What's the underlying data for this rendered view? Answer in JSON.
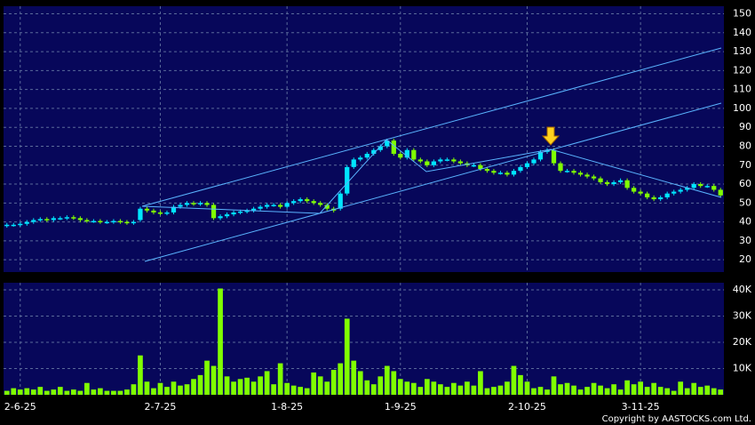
{
  "chart_data": {
    "type": "candlestick",
    "categories": [
      null,
      null,
      "2-6-25",
      null,
      null,
      null,
      null,
      null,
      null,
      null,
      null,
      null,
      null,
      null,
      null,
      null,
      null,
      null,
      null,
      null,
      null,
      null,
      null,
      "2-7-25",
      null,
      null,
      null,
      null,
      null,
      null,
      null,
      null,
      null,
      null,
      null,
      null,
      null,
      null,
      null,
      null,
      null,
      null,
      "1-8-25",
      null,
      null,
      null,
      null,
      null,
      null,
      null,
      null,
      null,
      null,
      null,
      null,
      null,
      null,
      null,
      null,
      "1-9-25",
      null,
      null,
      null,
      null,
      null,
      null,
      null,
      null,
      null,
      null,
      null,
      null,
      null,
      null,
      null,
      null,
      null,
      null,
      "2-10-25",
      null,
      null,
      null,
      null,
      null,
      null,
      null,
      null,
      null,
      null,
      null,
      null,
      null,
      null,
      null,
      null,
      "3-11-25",
      null,
      null,
      null,
      null,
      null,
      null,
      null,
      null,
      null,
      null,
      null,
      null
    ],
    "open": [
      38,
      38.5,
      38.5,
      39,
      40,
      41,
      41.5,
      41,
      42,
      42,
      42.5,
      42,
      41,
      40.5,
      40.5,
      40,
      40,
      40.5,
      40,
      39.5,
      41,
      47,
      46,
      45,
      44.5,
      45,
      48,
      49,
      50,
      49.5,
      50,
      49,
      42,
      43,
      44,
      45,
      45.5,
      46,
      47,
      48,
      49,
      49,
      48,
      50,
      51,
      52,
      51,
      50,
      49,
      47,
      47,
      55,
      69,
      73,
      74,
      76,
      78,
      80,
      83,
      76,
      74,
      78,
      73,
      72,
      70,
      72,
      73,
      73,
      72,
      71,
      70,
      70,
      68,
      67,
      66,
      66,
      65,
      67,
      69,
      71,
      73,
      77,
      78,
      71,
      67,
      67,
      66,
      65,
      64,
      63,
      61,
      60,
      61,
      62,
      58,
      56,
      55,
      53,
      52,
      53,
      55,
      56,
      57,
      58,
      60,
      59,
      59,
      57
    ],
    "high": [
      39.5,
      39.5,
      40,
      41,
      42,
      42.5,
      42.5,
      43,
      43,
      43.5,
      43.5,
      43,
      42,
      41.5,
      41.5,
      41,
      41.5,
      41.5,
      41,
      41,
      48,
      48,
      47,
      46,
      46,
      49,
      50,
      51,
      51,
      51,
      51,
      50,
      44,
      45,
      46,
      46.5,
      47,
      48,
      49,
      50,
      50,
      50,
      51,
      52,
      53,
      53,
      52,
      51,
      50,
      48,
      56,
      70,
      74,
      75,
      77,
      79,
      81,
      84,
      84,
      77,
      79,
      79,
      74,
      73,
      73,
      74,
      74,
      74,
      73,
      72,
      71,
      71,
      69,
      68,
      67,
      67,
      68,
      70,
      72,
      74,
      78,
      79,
      79,
      72,
      68,
      68,
      67,
      66,
      65,
      64,
      62,
      62,
      63,
      63,
      59,
      57,
      56,
      54,
      54,
      56,
      57,
      58,
      59,
      61,
      61,
      60,
      60,
      58
    ],
    "low": [
      37,
      37.5,
      37.5,
      38,
      39,
      40,
      40,
      40,
      41,
      41,
      41,
      40,
      39.5,
      39.5,
      39,
      39,
      39,
      39,
      38.5,
      38.5,
      40,
      45,
      44,
      43.5,
      43.5,
      44,
      47,
      48,
      48.5,
      48.5,
      48,
      41,
      41,
      42,
      43,
      44,
      44.5,
      45,
      46,
      47,
      48,
      47,
      47,
      49,
      50,
      50,
      49,
      48,
      46,
      45,
      46,
      54,
      68,
      72,
      73,
      75,
      77,
      79,
      75,
      73,
      73,
      72,
      71,
      69,
      69,
      71,
      72,
      71,
      70,
      69,
      69,
      67,
      66,
      65,
      65,
      64,
      64,
      66,
      68,
      70,
      72,
      76,
      70,
      66,
      66,
      65,
      64,
      63,
      62,
      60,
      59,
      59,
      60,
      57,
      55,
      54,
      52,
      51,
      51,
      52,
      54,
      55,
      56,
      57,
      58,
      58,
      56,
      53
    ],
    "close": [
      38.5,
      38.5,
      39,
      40,
      41,
      41.5,
      41,
      42,
      42,
      42.5,
      42,
      41,
      40.5,
      40.5,
      40,
      40,
      40.5,
      40,
      39.5,
      40,
      47,
      46,
      45,
      44.5,
      45,
      48,
      49,
      50,
      49.5,
      50,
      49,
      42,
      43,
      44,
      45,
      45.5,
      46,
      47,
      48,
      49,
      49,
      48,
      50,
      51,
      52,
      51,
      50,
      49,
      47,
      46,
      55,
      69,
      73,
      74,
      76,
      78,
      80,
      83,
      76,
      74,
      78,
      73,
      72,
      70,
      72,
      73,
      73,
      72,
      71,
      70,
      70,
      68,
      67,
      66,
      66,
      65,
      67,
      69,
      71,
      73,
      77,
      78,
      71,
      67,
      67,
      66,
      65,
      64,
      63,
      61,
      60,
      61,
      62,
      58,
      56,
      55,
      53,
      52,
      53,
      55,
      56,
      57,
      58,
      60,
      59,
      59,
      57,
      54
    ],
    "volume": [
      1500,
      2500,
      2000,
      2500,
      2000,
      3000,
      1500,
      2000,
      3000,
      1500,
      2000,
      1500,
      4500,
      2000,
      2500,
      1500,
      1500,
      1500,
      2000,
      4000,
      15000,
      5000,
      2500,
      4500,
      3000,
      5000,
      3500,
      4000,
      6000,
      7500,
      13000,
      11000,
      40500,
      7000,
      5000,
      6000,
      6500,
      5000,
      7000,
      9000,
      4000,
      12000,
      4500,
      3500,
      3000,
      2500,
      8500,
      7000,
      5000,
      9500,
      12000,
      29000,
      13000,
      9000,
      5500,
      4000,
      7000,
      11000,
      9000,
      6000,
      5000,
      4500,
      3000,
      6000,
      5000,
      4000,
      3000,
      4500,
      3500,
      5000,
      3500,
      9000,
      2500,
      3000,
      3500,
      5000,
      11000,
      7500,
      5000,
      2500,
      3000,
      2000,
      7000,
      4000,
      4500,
      3500,
      2000,
      3000,
      4500,
      3500,
      2500,
      4000,
      2000,
      5500,
      4000,
      5000,
      3000,
      4500,
      3000,
      2500,
      1500,
      5000,
      2500,
      4500,
      3000,
      3500,
      2500,
      2000
    ],
    "up_color": "#00e5ff",
    "down_color": "#80ff00",
    "volume_color": "#80ff00",
    "ylim": [
      13.5,
      154
    ],
    "yticks": [
      20,
      30,
      40,
      50,
      60,
      70,
      80,
      90,
      100,
      110,
      120,
      130,
      140,
      150
    ],
    "volume_ylim": [
      0,
      42700
    ],
    "volume_yticks": [
      {
        "value": 10000,
        "label": "10K"
      },
      {
        "value": 20000,
        "label": "20K"
      },
      {
        "value": 30000,
        "label": "30K"
      },
      {
        "value": 40000,
        "label": "40K"
      }
    ],
    "grid": true,
    "copyright": "Copyright by AASTOCKS.com Ltd."
  }
}
